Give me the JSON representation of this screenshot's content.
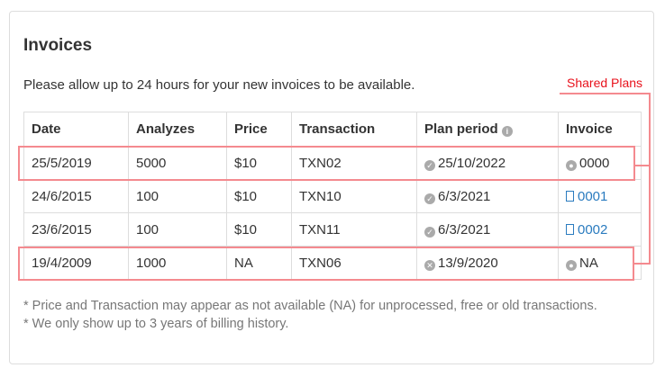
{
  "title": "Invoices",
  "note": "Please allow up to 24 hours for your new invoices to be available.",
  "annotation": {
    "label": "Shared Plans",
    "color": "#e8121c"
  },
  "columns": [
    "Date",
    "Analyzes",
    "Price",
    "Transaction",
    "Plan period",
    "Invoice"
  ],
  "rows": [
    {
      "date": "25/5/2019",
      "analyzes": "5000",
      "price": "$10",
      "transaction": "TXN02",
      "plan_status": "check-circle-icon",
      "plan_period": "25/10/2022",
      "invoice_icon": "user-icon",
      "invoice": "0000"
    },
    {
      "date": "24/6/2015",
      "analyzes": "100",
      "price": "$10",
      "transaction": "TXN10",
      "plan_status": "check-circle-icon",
      "plan_period": "6/3/2021",
      "invoice_icon": "pdf-icon",
      "invoice": "0001"
    },
    {
      "date": "23/6/2015",
      "analyzes": "100",
      "price": "$10",
      "transaction": "TXN11",
      "plan_status": "check-circle-icon",
      "plan_period": "6/3/2021",
      "invoice_icon": "pdf-icon",
      "invoice": "0002"
    },
    {
      "date": "19/4/2009",
      "analyzes": "1000",
      "price": "NA",
      "transaction": "TXN06",
      "plan_status": "x-circle-icon",
      "plan_period": "13/9/2020",
      "invoice_icon": "user-icon",
      "invoice": "NA"
    }
  ],
  "footnotes": [
    "* Price and Transaction may appear as not available (NA) for unprocessed, free or old transactions.",
    "* We only show up to 3 years of billing history."
  ]
}
